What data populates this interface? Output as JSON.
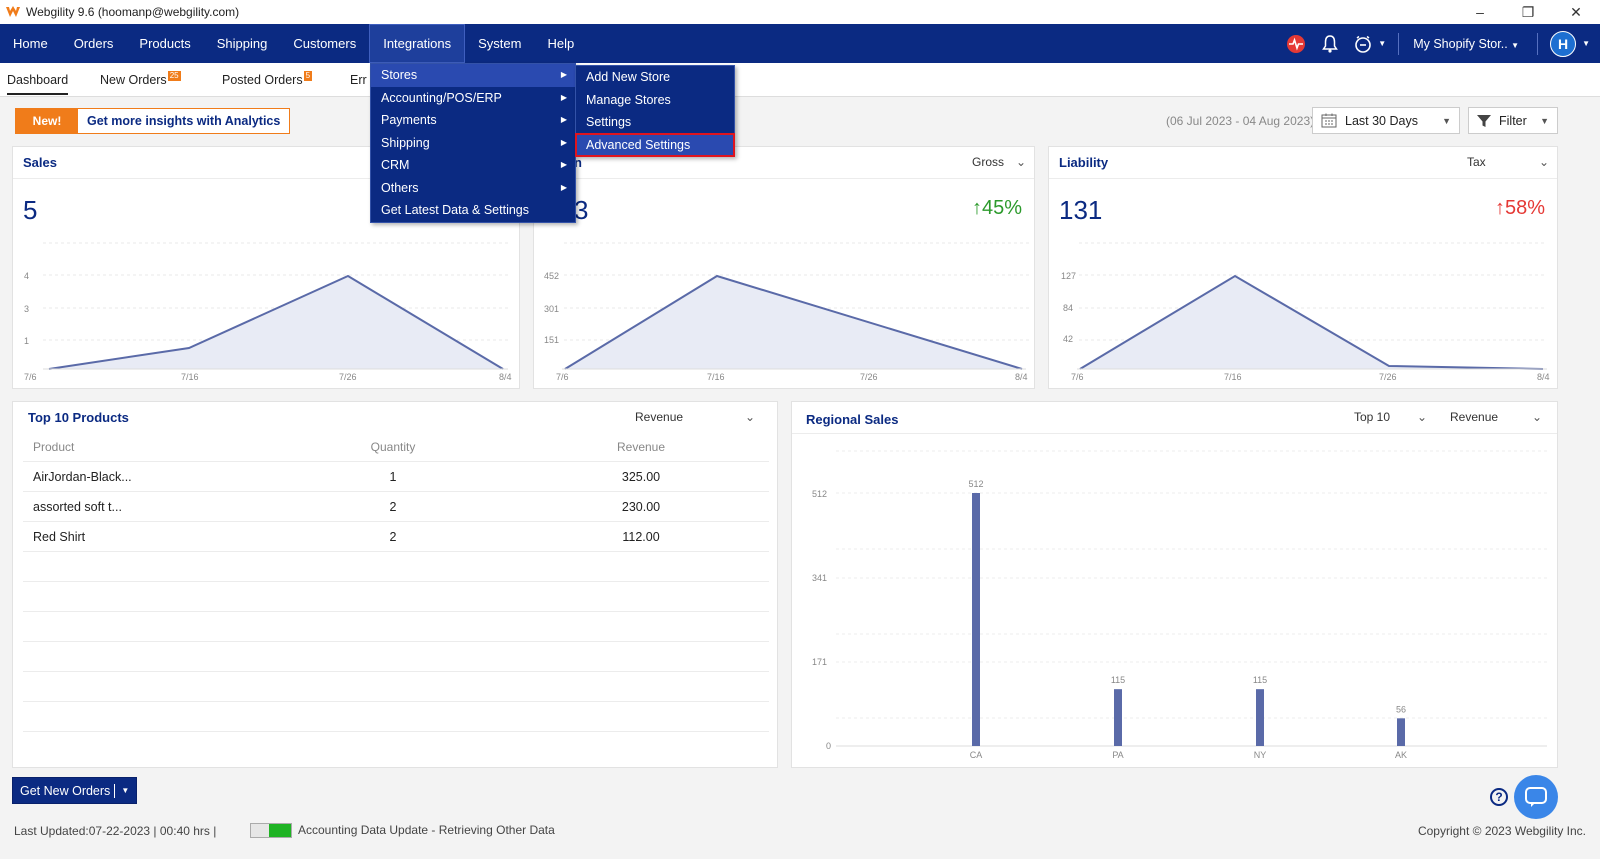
{
  "window": {
    "title": "Webgility 9.6 (hoomanp@webgility.com)"
  },
  "nav": {
    "items": [
      "Home",
      "Orders",
      "Products",
      "Shipping",
      "Customers",
      "Integrations",
      "System",
      "Help"
    ],
    "store_label": "My Shopify Stor..",
    "avatar_initial": "H"
  },
  "subtabs": {
    "dashboard": "Dashboard",
    "new_orders": "New Orders",
    "new_orders_count": "25",
    "posted_orders": "Posted Orders",
    "posted_orders_count": "5",
    "errors": "Err"
  },
  "banner": {
    "badge": "New!",
    "text": "Get more insights with Analytics"
  },
  "toolbar": {
    "date_range": "(06 Jul 2023 - 04 Aug 2023)",
    "period": "Last 30 Days",
    "filter": "Filter"
  },
  "sales": {
    "title": "Sales",
    "value": "5",
    "y_ticks": [
      "4",
      "3",
      "1"
    ],
    "x_ticks": [
      "7/6",
      "7/16",
      "7/26",
      "8/4"
    ]
  },
  "middle_card": {
    "title_fragment": "n",
    "dropdown": "Gross",
    "value_fragment": "3",
    "change": "45%",
    "y_ticks": [
      "452",
      "301",
      "151"
    ],
    "x_ticks": [
      "7/6",
      "7/16",
      "7/26",
      "8/4"
    ]
  },
  "liability": {
    "title": "Liability",
    "dropdown": "Tax",
    "value": "131",
    "change": "58%",
    "y_ticks": [
      "127",
      "84",
      "42"
    ],
    "x_ticks": [
      "7/6",
      "7/16",
      "7/26",
      "8/4"
    ]
  },
  "top_products": {
    "title": "Top 10 Products",
    "dropdown": "Revenue",
    "headers": {
      "product": "Product",
      "quantity": "Quantity",
      "revenue": "Revenue"
    },
    "rows": [
      {
        "product": "AirJordan-Black...",
        "quantity": "1",
        "revenue": "325.00"
      },
      {
        "product": "assorted soft t...",
        "quantity": "2",
        "revenue": "230.00"
      },
      {
        "product": "Red Shirt",
        "quantity": "2",
        "revenue": "112.00"
      }
    ]
  },
  "regional": {
    "title": "Regional Sales",
    "top_dropdown": "Top 10",
    "metric_dropdown": "Revenue",
    "y_ticks": [
      "512",
      "341",
      "171",
      "0"
    ]
  },
  "chart_data": [
    {
      "type": "area",
      "chart": "Sales",
      "x": [
        "7/6",
        "7/16",
        "7/26",
        "8/4"
      ],
      "values": [
        0,
        1,
        4,
        0
      ]
    },
    {
      "type": "area",
      "chart": "Gross",
      "x": [
        "7/6",
        "7/16",
        "8/4"
      ],
      "values": [
        0,
        452,
        0
      ]
    },
    {
      "type": "area",
      "chart": "Liability",
      "x": [
        "7/6",
        "7/16",
        "7/26",
        "8/4"
      ],
      "values": [
        0,
        127,
        1,
        0
      ]
    },
    {
      "type": "bar",
      "chart": "Regional Sales",
      "categories": [
        "CA",
        "PA",
        "NY",
        "AK"
      ],
      "values": [
        512,
        115,
        115,
        56
      ],
      "ylim": [
        0,
        512
      ]
    }
  ],
  "integrations_menu": {
    "items": [
      {
        "label": "Stores",
        "submenu": true
      },
      {
        "label": "Accounting/POS/ERP",
        "submenu": true
      },
      {
        "label": "Payments",
        "submenu": true
      },
      {
        "label": "Shipping",
        "submenu": true
      },
      {
        "label": "CRM",
        "submenu": true
      },
      {
        "label": "Others",
        "submenu": true
      },
      {
        "label": "Get Latest Data & Settings",
        "submenu": false
      }
    ]
  },
  "stores_submenu": {
    "items": [
      "Add New Store",
      "Manage Stores",
      "Settings",
      "Advanced Settings"
    ]
  },
  "bottom": {
    "get_orders": "Get New Orders",
    "last_updated": "Last Updated:07-22-2023 | 00:40 hrs |",
    "progress_text": "Accounting Data Update - Retrieving Other Data",
    "progress": 0.55,
    "copyright": "Copyright © 2023 Webgility Inc."
  },
  "colors": {
    "nav_bg": "#0b2a82",
    "accent_orange": "#f07c1a",
    "chart_line": "#5a6aa8",
    "up_green": "#2c9a2c",
    "up_red": "#e53935"
  }
}
